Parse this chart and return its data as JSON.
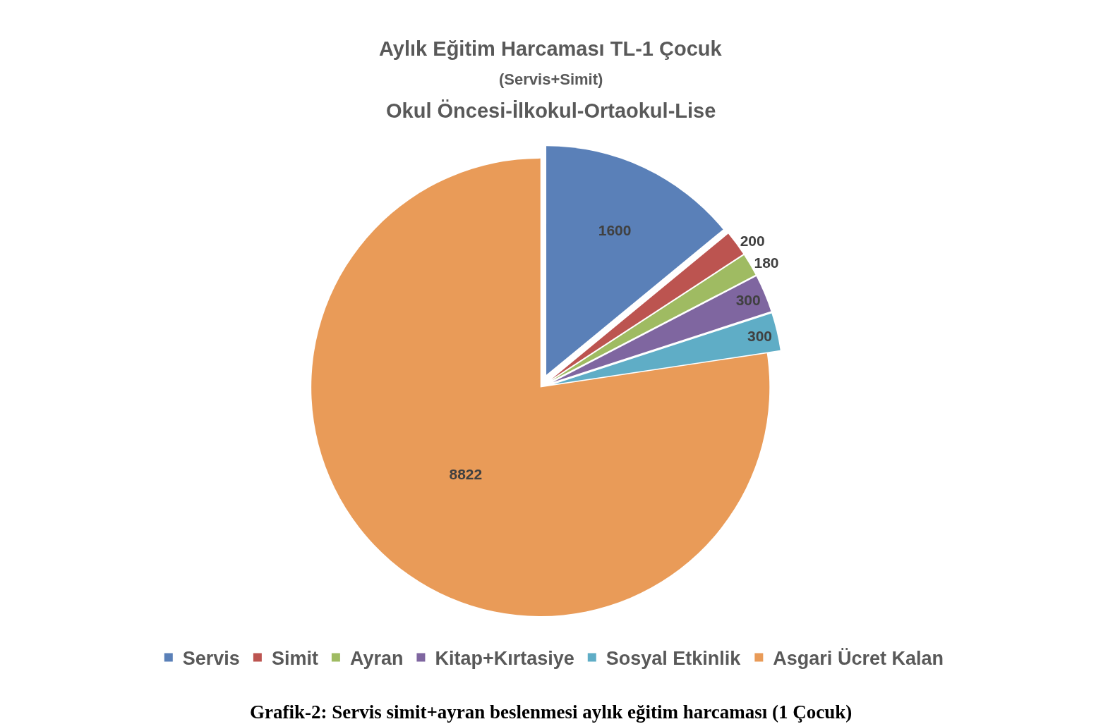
{
  "chart_data": {
    "type": "pie",
    "title": "Aylık Eğitim Harcaması TL-1 Çocuk",
    "subtitle": "(Servis+Simit)\nOkul Öncesi-İlkokul-Ortaokul-Lise",
    "categories": [
      "Servis",
      "Simit",
      "Ayran",
      "Kitap+Kırtasiye",
      "Sosyal Etkinlik",
      "Asgari Ücret Kalan"
    ],
    "values": [
      1600,
      200,
      180,
      300,
      300,
      8822
    ],
    "colors": [
      "#5a80b8",
      "#bc5450",
      "#9fbb62",
      "#7f66a0",
      "#5fadc6",
      "#e99b58"
    ],
    "data_labels": true,
    "legend": "bottom",
    "annotations": [
      "Grafik-2: Servis simit+ayran beslenmesi aylık eğitim harcaması (1 Çocuk)"
    ]
  }
}
